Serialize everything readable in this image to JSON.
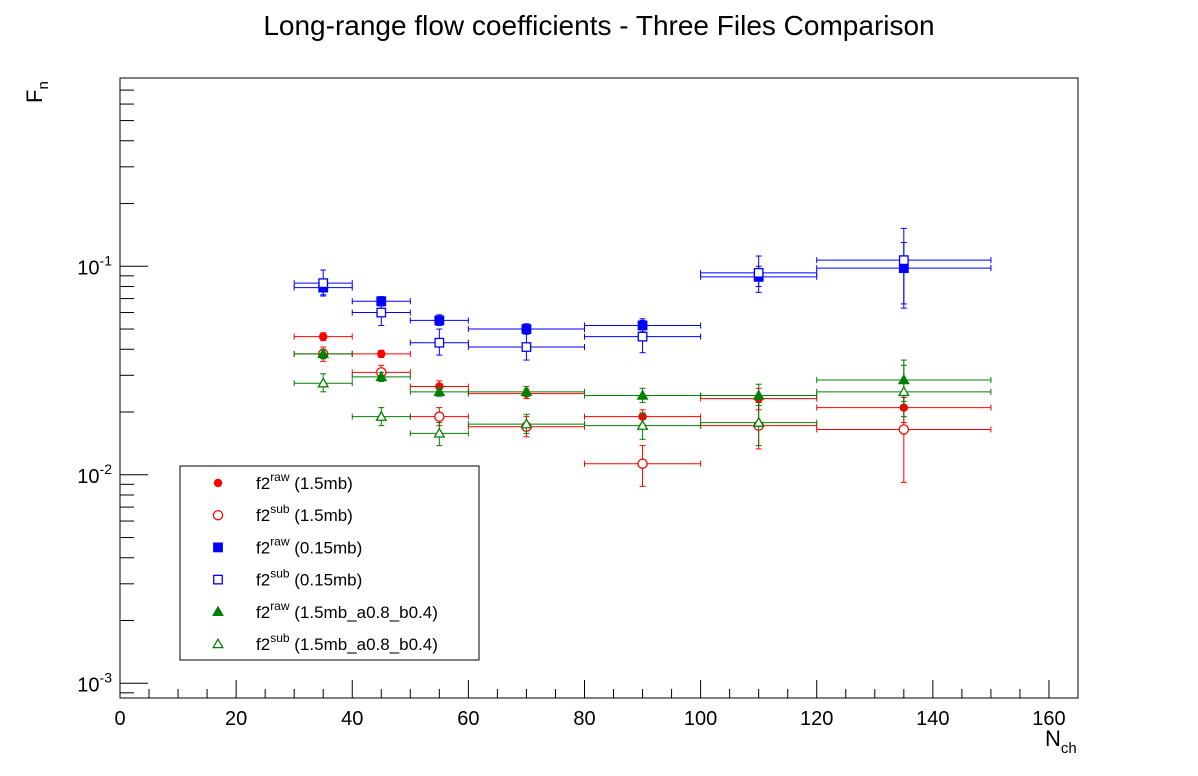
{
  "chart_data": {
    "type": "scatter",
    "title": "Long-range flow coefficients - Three Files Comparison",
    "ylabel": {
      "main": "F",
      "sub": "n"
    },
    "xlabel": {
      "main": "N",
      "sub": "ch"
    },
    "xlim": [
      0,
      165
    ],
    "ylim": [
      0.00085,
      0.8
    ],
    "ylog": true,
    "x_ticks": [
      0,
      20,
      40,
      60,
      80,
      100,
      120,
      140,
      160
    ],
    "y_ticks": [
      {
        "value": 0.001,
        "base": "10",
        "exp": "-3"
      },
      {
        "value": 0.01,
        "base": "10",
        "exp": "-2"
      },
      {
        "value": 0.1,
        "base": "10",
        "exp": "-1"
      }
    ],
    "legend_position": "bottom-left",
    "series": [
      {
        "name": "f2",
        "sup": "raw",
        "suffix": " (1.5mb)",
        "color": "#ff0000",
        "marker": "circle",
        "filled": true,
        "points": [
          {
            "x": 35,
            "xlo": 30,
            "xhi": 40,
            "y": 0.046,
            "ylo": 0.044,
            "yhi": 0.048
          },
          {
            "x": 45,
            "xlo": 40,
            "xhi": 50,
            "y": 0.038,
            "ylo": 0.0365,
            "yhi": 0.0395
          },
          {
            "x": 55,
            "xlo": 50,
            "xhi": 60,
            "y": 0.0265,
            "ylo": 0.0252,
            "yhi": 0.0282
          },
          {
            "x": 70,
            "xlo": 60,
            "xhi": 80,
            "y": 0.0245,
            "ylo": 0.0232,
            "yhi": 0.0258
          },
          {
            "x": 90,
            "xlo": 80,
            "xhi": 100,
            "y": 0.019,
            "ylo": 0.0175,
            "yhi": 0.0205
          },
          {
            "x": 110,
            "xlo": 100,
            "xhi": 120,
            "y": 0.0232,
            "ylo": 0.0205,
            "yhi": 0.026
          },
          {
            "x": 135,
            "xlo": 120,
            "xhi": 150,
            "y": 0.021,
            "ylo": 0.0178,
            "yhi": 0.0248
          }
        ]
      },
      {
        "name": "f2",
        "sup": "sub",
        "suffix": " (1.5mb)",
        "color": "#ff0000",
        "marker": "circle",
        "filled": false,
        "points": [
          {
            "x": 35,
            "xlo": 30,
            "xhi": 40,
            "y": 0.038,
            "ylo": 0.035,
            "yhi": 0.041
          },
          {
            "x": 45,
            "xlo": 40,
            "xhi": 50,
            "y": 0.031,
            "ylo": 0.0288,
            "yhi": 0.0335
          },
          {
            "x": 55,
            "xlo": 50,
            "xhi": 60,
            "y": 0.019,
            "ylo": 0.0172,
            "yhi": 0.021
          },
          {
            "x": 70,
            "xlo": 60,
            "xhi": 80,
            "y": 0.017,
            "ylo": 0.0152,
            "yhi": 0.019
          },
          {
            "x": 90,
            "xlo": 80,
            "xhi": 100,
            "y": 0.0113,
            "ylo": 0.0088,
            "yhi": 0.0138
          },
          {
            "x": 110,
            "xlo": 100,
            "xhi": 120,
            "y": 0.0172,
            "ylo": 0.0133,
            "yhi": 0.0222
          },
          {
            "x": 135,
            "xlo": 120,
            "xhi": 150,
            "y": 0.0165,
            "ylo": 0.0092,
            "yhi": 0.0235
          }
        ]
      },
      {
        "name": "f2",
        "sup": "raw",
        "suffix": " (0.15mb)",
        "color": "#0000ff",
        "marker": "square",
        "filled": true,
        "points": [
          {
            "x": 35,
            "xlo": 30,
            "xhi": 40,
            "y": 0.079,
            "ylo": 0.073,
            "yhi": 0.086
          },
          {
            "x": 45,
            "xlo": 40,
            "xhi": 50,
            "y": 0.068,
            "ylo": 0.0645,
            "yhi": 0.0715
          },
          {
            "x": 55,
            "xlo": 50,
            "xhi": 60,
            "y": 0.055,
            "ylo": 0.052,
            "yhi": 0.0585
          },
          {
            "x": 70,
            "xlo": 60,
            "xhi": 80,
            "y": 0.05,
            "ylo": 0.0472,
            "yhi": 0.053
          },
          {
            "x": 90,
            "xlo": 80,
            "xhi": 100,
            "y": 0.052,
            "ylo": 0.0485,
            "yhi": 0.056
          },
          {
            "x": 110,
            "xlo": 100,
            "xhi": 120,
            "y": 0.089,
            "ylo": 0.08,
            "yhi": 0.1
          },
          {
            "x": 135,
            "xlo": 120,
            "xhi": 150,
            "y": 0.098,
            "ylo": 0.063,
            "yhi": 0.13
          }
        ]
      },
      {
        "name": "f2",
        "sup": "sub",
        "suffix": " (0.15mb)",
        "color": "#0000ff",
        "marker": "square",
        "filled": false,
        "points": [
          {
            "x": 35,
            "xlo": 30,
            "xhi": 40,
            "y": 0.083,
            "ylo": 0.072,
            "yhi": 0.096
          },
          {
            "x": 45,
            "xlo": 40,
            "xhi": 50,
            "y": 0.06,
            "ylo": 0.052,
            "yhi": 0.069
          },
          {
            "x": 55,
            "xlo": 50,
            "xhi": 60,
            "y": 0.043,
            "ylo": 0.0375,
            "yhi": 0.05
          },
          {
            "x": 70,
            "xlo": 60,
            "xhi": 80,
            "y": 0.041,
            "ylo": 0.0355,
            "yhi": 0.0475
          },
          {
            "x": 90,
            "xlo": 80,
            "xhi": 100,
            "y": 0.046,
            "ylo": 0.0385,
            "yhi": 0.055
          },
          {
            "x": 110,
            "xlo": 100,
            "xhi": 120,
            "y": 0.093,
            "ylo": 0.075,
            "yhi": 0.112
          },
          {
            "x": 135,
            "xlo": 120,
            "xhi": 150,
            "y": 0.107,
            "ylo": 0.066,
            "yhi": 0.152
          }
        ]
      },
      {
        "name": "f2",
        "sup": "raw",
        "suffix": " (1.5mb_a0.8_b0.4)",
        "color": "#008000",
        "marker": "triangle",
        "filled": true,
        "points": [
          {
            "x": 35,
            "xlo": 30,
            "xhi": 40,
            "y": 0.038,
            "ylo": 0.036,
            "yhi": 0.04
          },
          {
            "x": 45,
            "xlo": 40,
            "xhi": 50,
            "y": 0.0295,
            "ylo": 0.028,
            "yhi": 0.031
          },
          {
            "x": 55,
            "xlo": 50,
            "xhi": 60,
            "y": 0.025,
            "ylo": 0.0238,
            "yhi": 0.0262
          },
          {
            "x": 70,
            "xlo": 60,
            "xhi": 80,
            "y": 0.025,
            "ylo": 0.0238,
            "yhi": 0.0265
          },
          {
            "x": 90,
            "xlo": 80,
            "xhi": 100,
            "y": 0.024,
            "ylo": 0.0222,
            "yhi": 0.026
          },
          {
            "x": 110,
            "xlo": 100,
            "xhi": 120,
            "y": 0.024,
            "ylo": 0.0215,
            "yhi": 0.0272
          },
          {
            "x": 135,
            "xlo": 120,
            "xhi": 150,
            "y": 0.0285,
            "ylo": 0.0225,
            "yhi": 0.0355
          }
        ]
      },
      {
        "name": "f2",
        "sup": "sub",
        "suffix": " (1.5mb_a0.8_b0.4)",
        "color": "#008000",
        "marker": "triangle",
        "filled": false,
        "points": [
          {
            "x": 35,
            "xlo": 30,
            "xhi": 40,
            "y": 0.0275,
            "ylo": 0.025,
            "yhi": 0.0305
          },
          {
            "x": 45,
            "xlo": 40,
            "xhi": 50,
            "y": 0.019,
            "ylo": 0.0172,
            "yhi": 0.021
          },
          {
            "x": 55,
            "xlo": 50,
            "xhi": 60,
            "y": 0.0158,
            "ylo": 0.0138,
            "yhi": 0.0178
          },
          {
            "x": 70,
            "xlo": 60,
            "xhi": 80,
            "y": 0.0175,
            "ylo": 0.0158,
            "yhi": 0.0195
          },
          {
            "x": 90,
            "xlo": 80,
            "xhi": 100,
            "y": 0.0172,
            "ylo": 0.0148,
            "yhi": 0.0198
          },
          {
            "x": 110,
            "xlo": 100,
            "xhi": 120,
            "y": 0.0178,
            "ylo": 0.0138,
            "yhi": 0.0232
          },
          {
            "x": 135,
            "xlo": 120,
            "xhi": 150,
            "y": 0.025,
            "ylo": 0.019,
            "yhi": 0.0335
          }
        ]
      }
    ]
  }
}
